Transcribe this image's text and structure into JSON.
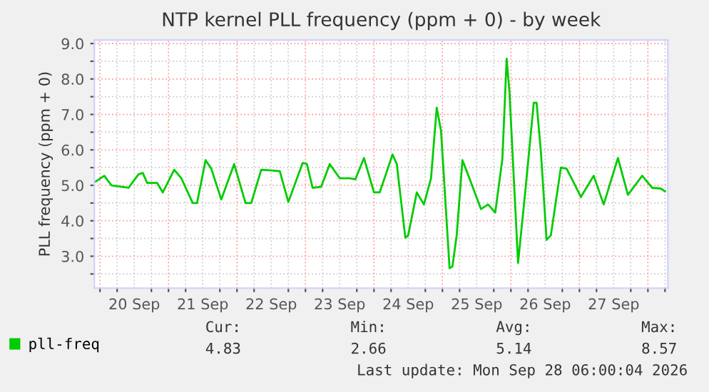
{
  "chart_data": {
    "type": "line",
    "title": "NTP kernel PLL frequency (ppm + 0) - by week",
    "ylabel": "PLL frequency (ppm + 0)",
    "x": [
      "2026-09-19T22:30",
      "2026-09-20T01:30",
      "2026-09-20T04:00",
      "2026-09-20T10:00",
      "2026-09-20T13:30",
      "2026-09-20T15:00",
      "2026-09-20T16:30",
      "2026-09-20T20:00",
      "2026-09-20T22:00",
      "2026-09-21T02:00",
      "2026-09-21T04:30",
      "2026-09-21T08:30",
      "2026-09-21T10:00",
      "2026-09-21T13:00",
      "2026-09-21T15:00",
      "2026-09-21T18:30",
      "2026-09-21T23:00",
      "2026-09-22T03:00",
      "2026-09-22T05:00",
      "2026-09-22T08:30",
      "2026-09-22T15:00",
      "2026-09-22T18:00",
      "2026-09-22T23:00",
      "2026-09-23T00:30",
      "2026-09-23T02:30",
      "2026-09-23T05:30",
      "2026-09-23T08:30",
      "2026-09-23T12:00",
      "2026-09-23T15:30",
      "2026-09-23T17:30",
      "2026-09-23T20:30",
      "2026-09-24T00:00",
      "2026-09-24T02:00",
      "2026-09-24T04:00",
      "2026-09-24T06:30",
      "2026-09-24T08:00",
      "2026-09-24T11:00",
      "2026-09-24T12:00",
      "2026-09-24T15:00",
      "2026-09-24T17:30",
      "2026-09-24T20:00",
      "2026-09-24T22:00",
      "2026-09-24T23:30",
      "2026-09-25T02:30",
      "2026-09-25T03:30",
      "2026-09-25T05:00",
      "2026-09-25T07:00",
      "2026-09-25T08:30",
      "2026-09-25T13:30",
      "2026-09-25T16:00",
      "2026-09-25T18:30",
      "2026-09-25T21:00",
      "2026-09-25T22:30",
      "2026-09-25T23:30",
      "2026-09-26T02:30",
      "2026-09-26T05:00",
      "2026-09-26T08:00",
      "2026-09-26T09:00",
      "2026-09-26T10:30",
      "2026-09-26T12:30",
      "2026-09-26T14:00",
      "2026-09-26T17:30",
      "2026-09-26T19:30",
      "2026-09-26T22:30",
      "2026-09-27T00:30",
      "2026-09-27T05:00",
      "2026-09-27T08:30",
      "2026-09-27T13:30",
      "2026-09-27T17:00",
      "2026-09-27T22:00",
      "2026-09-28T01:30",
      "2026-09-28T04:30",
      "2026-09-28T06:00"
    ],
    "series": [
      {
        "name": "pll-freq",
        "color": "#00cc00",
        "values": [
          5.11,
          5.27,
          5.0,
          4.93,
          5.31,
          5.35,
          5.07,
          5.07,
          4.8,
          5.44,
          5.2,
          4.5,
          4.5,
          5.71,
          5.47,
          4.6,
          5.6,
          4.5,
          4.5,
          5.44,
          5.4,
          4.53,
          5.63,
          5.6,
          4.93,
          4.96,
          5.6,
          5.2,
          5.2,
          5.17,
          5.77,
          4.8,
          4.8,
          5.27,
          5.87,
          5.6,
          3.52,
          3.59,
          4.8,
          4.46,
          5.2,
          7.19,
          6.54,
          2.66,
          2.71,
          3.59,
          5.71,
          5.4,
          4.33,
          4.46,
          4.23,
          5.74,
          8.57,
          7.62,
          2.81,
          4.8,
          7.33,
          7.33,
          5.94,
          3.46,
          3.59,
          5.5,
          5.47,
          5.0,
          4.67,
          5.27,
          4.46,
          5.77,
          4.73,
          5.27,
          4.93,
          4.91,
          4.83
        ]
      }
    ],
    "xlim": [
      "2026-09-19T22:00",
      "2026-09-28T07:00"
    ],
    "xticks": [
      {
        "value": "2026-09-20T00:00",
        "label": null
      },
      {
        "value": "2026-09-20T06:00",
        "label": null
      },
      {
        "value": "2026-09-20T12:00",
        "label": "20 Sep"
      },
      {
        "value": "2026-09-20T18:00",
        "label": null
      },
      {
        "value": "2026-09-21T00:00",
        "label": null
      },
      {
        "value": "2026-09-21T06:00",
        "label": null
      },
      {
        "value": "2026-09-21T12:00",
        "label": "21 Sep"
      },
      {
        "value": "2026-09-21T18:00",
        "label": null
      },
      {
        "value": "2026-09-22T00:00",
        "label": null
      },
      {
        "value": "2026-09-22T06:00",
        "label": null
      },
      {
        "value": "2026-09-22T12:00",
        "label": "22 Sep"
      },
      {
        "value": "2026-09-22T18:00",
        "label": null
      },
      {
        "value": "2026-09-23T00:00",
        "label": null
      },
      {
        "value": "2026-09-23T06:00",
        "label": null
      },
      {
        "value": "2026-09-23T12:00",
        "label": "23 Sep"
      },
      {
        "value": "2026-09-23T18:00",
        "label": null
      },
      {
        "value": "2026-09-24T00:00",
        "label": null
      },
      {
        "value": "2026-09-24T06:00",
        "label": null
      },
      {
        "value": "2026-09-24T12:00",
        "label": "24 Sep"
      },
      {
        "value": "2026-09-24T18:00",
        "label": null
      },
      {
        "value": "2026-09-25T00:00",
        "label": null
      },
      {
        "value": "2026-09-25T06:00",
        "label": null
      },
      {
        "value": "2026-09-25T12:00",
        "label": "25 Sep"
      },
      {
        "value": "2026-09-25T18:00",
        "label": null
      },
      {
        "value": "2026-09-26T00:00",
        "label": null
      },
      {
        "value": "2026-09-26T06:00",
        "label": null
      },
      {
        "value": "2026-09-26T12:00",
        "label": "26 Sep"
      },
      {
        "value": "2026-09-26T18:00",
        "label": null
      },
      {
        "value": "2026-09-27T00:00",
        "label": null
      },
      {
        "value": "2026-09-27T06:00",
        "label": null
      },
      {
        "value": "2026-09-27T12:00",
        "label": "27 Sep"
      },
      {
        "value": "2026-09-27T18:00",
        "label": null
      },
      {
        "value": "2026-09-28T00:00",
        "label": null
      },
      {
        "value": "2026-09-28T06:00",
        "label": null
      }
    ],
    "ylim": [
      2.1,
      9.1
    ],
    "yticks": [
      {
        "value": 2.5,
        "label": null
      },
      {
        "value": 3.0,
        "label": "3.0"
      },
      {
        "value": 3.5,
        "label": null
      },
      {
        "value": 4.0,
        "label": "4.0"
      },
      {
        "value": 4.5,
        "label": null
      },
      {
        "value": 5.0,
        "label": "5.0"
      },
      {
        "value": 5.5,
        "label": null
      },
      {
        "value": 6.0,
        "label": "6.0"
      },
      {
        "value": 6.5,
        "label": null
      },
      {
        "value": 7.0,
        "label": "7.0"
      },
      {
        "value": 7.5,
        "label": null
      },
      {
        "value": 8.0,
        "label": "8.0"
      },
      {
        "value": 8.5,
        "label": null
      },
      {
        "value": 9.0,
        "label": "9.0"
      }
    ],
    "grid": true,
    "legend": "bottom left",
    "marker": "none",
    "line_style": "solid",
    "annotations": [
      "Cur:",
      "Min:",
      "Avg:",
      "Max:",
      "4.83",
      "2.66",
      "5.14",
      "8.57",
      "Last update: Mon Sep 28 06:00:04 2026"
    ]
  }
}
